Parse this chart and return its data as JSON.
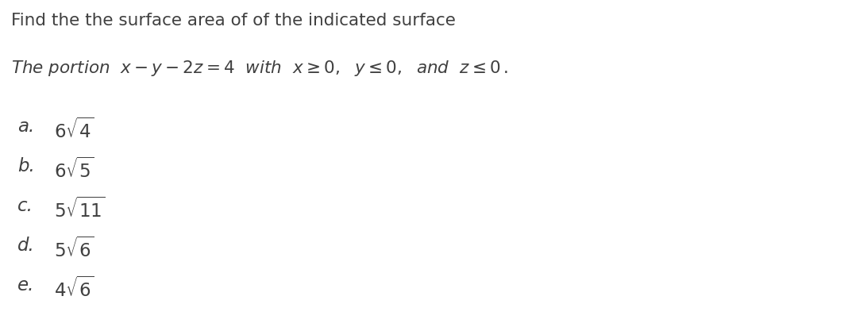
{
  "title": "Find the the surface area of of the indicated surface",
  "options": [
    {
      "label": "a. ",
      "coeff": "6",
      "radicand": "4"
    },
    {
      "label": "b. ",
      "coeff": "6",
      "radicand": "5"
    },
    {
      "label": "c. ",
      "coeff": "5",
      "radicand": "11"
    },
    {
      "label": "d. ",
      "coeff": "5",
      "radicand": "6"
    },
    {
      "label": "e. ",
      "coeff": "4",
      "radicand": "6"
    }
  ],
  "bg_color": "#ffffff",
  "text_color": "#404040",
  "title_fontsize": 15.5,
  "subtitle_fontsize": 15.5,
  "option_fontsize": 16.5,
  "fig_width": 10.68,
  "fig_height": 4.12,
  "dpi": 100
}
